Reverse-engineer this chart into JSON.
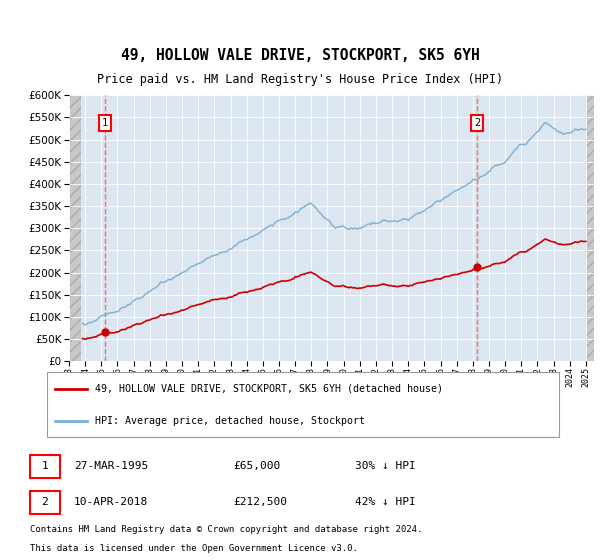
{
  "title": "49, HOLLOW VALE DRIVE, STOCKPORT, SK5 6YH",
  "subtitle": "Price paid vs. HM Land Registry's House Price Index (HPI)",
  "sale1_date": "27-MAR-1995",
  "sale1_price": 65000,
  "sale1_year": 1995.22,
  "sale2_date": "10-APR-2018",
  "sale2_price": 212500,
  "sale2_year": 2018.28,
  "legend_line1": "49, HOLLOW VALE DRIVE, STOCKPORT, SK5 6YH (detached house)",
  "legend_line2": "HPI: Average price, detached house, Stockport",
  "ymin": 0,
  "ymax": 600000,
  "xmin": 1993.0,
  "xmax": 2025.5,
  "price_color": "#cc0000",
  "hpi_color": "#7bafd4",
  "plot_bg": "#dce6f0",
  "vline_color": "#ff5555",
  "hatch_left_end": 1993.75,
  "hatch_right_start": 2025.0,
  "data_start": 1993.75,
  "data_end": 2025.0
}
